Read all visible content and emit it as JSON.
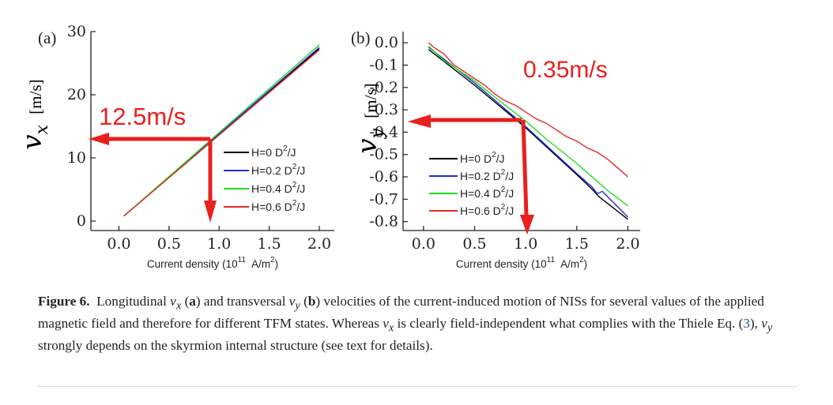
{
  "chart_data": [
    {
      "type": "line",
      "panel_label": "(a)",
      "xlabel": "Current density (10",
      "xlabel_exp": "11",
      "xlabel_unit": "A/m",
      "xlabel_unit_exp": "2",
      "xlabel_close": ")",
      "ylabel_symbol": "v",
      "ylabel_sub": "x",
      "ylabel_unit": "[m/s]",
      "xlim": [
        -0.28,
        2.15
      ],
      "ylim": [
        -1.5,
        30
      ],
      "xticks": [
        0.0,
        0.5,
        1.0,
        1.5,
        2.0
      ],
      "xtick_labels": [
        "0.0",
        "0.5",
        "1.0",
        "1.5",
        "2.0"
      ],
      "yticks": [
        0,
        10,
        20,
        30
      ],
      "ytick_labels": [
        "0",
        "10",
        "20",
        "30"
      ],
      "legend_position": "lower-right",
      "series": [
        {
          "name": "H=0 D",
          "name_exp": "2",
          "name_tail": "/J",
          "color": "#000000",
          "x": [
            0.05,
            2.0
          ],
          "y": [
            0.8,
            27.3
          ]
        },
        {
          "name": "H=0.2 D",
          "name_exp": "2",
          "name_tail": "/J",
          "color": "#1f2dd6",
          "x": [
            0.05,
            2.0
          ],
          "y": [
            0.8,
            27.5
          ]
        },
        {
          "name": "H=0.4 D",
          "name_exp": "2",
          "name_tail": "/J",
          "color": "#22dd22",
          "x": [
            0.05,
            2.0
          ],
          "y": [
            0.8,
            27.9
          ]
        },
        {
          "name": "H=0.6 D",
          "name_exp": "2",
          "name_tail": "/J",
          "color": "#e32a22",
          "x": [
            0.05,
            2.0
          ],
          "y": [
            0.8,
            27.1
          ]
        }
      ],
      "annotation": {
        "text": "12.5m/s",
        "color": "#e8201e",
        "point": [
          0.95,
          12.5
        ]
      }
    },
    {
      "type": "line",
      "panel_label": "(b)",
      "xlabel": "Current density (10",
      "xlabel_exp": "11",
      "xlabel_unit": "A/m",
      "xlabel_unit_exp": "2",
      "xlabel_close": ")",
      "ylabel_symbol": "v",
      "ylabel_sub": "y",
      "ylabel_unit": "[m/s]",
      "xlim": [
        -0.2,
        2.12
      ],
      "ylim": [
        -0.84,
        0.05
      ],
      "xticks": [
        0.0,
        0.5,
        1.0,
        1.5,
        2.0
      ],
      "xtick_labels": [
        "0.0",
        "0.5",
        "1.0",
        "1.5",
        "2.0"
      ],
      "yticks": [
        0.0,
        -0.1,
        -0.2,
        -0.3,
        -0.4,
        -0.5,
        -0.6,
        -0.7,
        -0.8
      ],
      "ytick_labels": [
        "0.0",
        "-0.1",
        "-0.2",
        "-0.3",
        "-0.4",
        "-0.5",
        "-0.6",
        "-0.7",
        "-0.8"
      ],
      "legend_position": "lower-left",
      "series": [
        {
          "name": "H=0 D",
          "name_exp": "2",
          "name_tail": "/J",
          "color": "#000000",
          "x": [
            0.05,
            0.5,
            1.0,
            1.5,
            1.65,
            1.72,
            2.0
          ],
          "y": [
            -0.03,
            -0.19,
            -0.38,
            -0.59,
            -0.655,
            -0.69,
            -0.79
          ]
        },
        {
          "name": "H=0.2 D",
          "name_exp": "2",
          "name_tail": "/J",
          "color": "#1f2dd6",
          "x": [
            0.05,
            0.5,
            1.0,
            1.5,
            1.65,
            1.7,
            1.75,
            2.0
          ],
          "y": [
            -0.02,
            -0.18,
            -0.375,
            -0.585,
            -0.645,
            -0.675,
            -0.665,
            -0.78
          ]
        },
        {
          "name": "H=0.4 D",
          "name_exp": "2",
          "name_tail": "/J",
          "color": "#22dd22",
          "x": [
            0.05,
            0.2,
            0.5,
            0.8,
            1.0,
            1.2,
            1.5,
            1.8,
            2.0
          ],
          "y": [
            -0.015,
            -0.08,
            -0.17,
            -0.28,
            -0.35,
            -0.43,
            -0.54,
            -0.66,
            -0.73
          ]
        },
        {
          "name": "H=0.6 D",
          "name_exp": "2",
          "name_tail": "/J",
          "color": "#e32a22",
          "x": [
            0.05,
            0.1,
            0.2,
            0.3,
            0.4,
            0.5,
            0.6,
            0.7,
            0.8,
            0.9,
            1.0,
            1.1,
            1.2,
            1.3,
            1.4,
            1.5,
            1.6,
            1.7,
            1.8,
            1.9,
            2.0
          ],
          "y": [
            0.0,
            -0.02,
            -0.05,
            -0.1,
            -0.13,
            -0.16,
            -0.19,
            -0.23,
            -0.26,
            -0.28,
            -0.31,
            -0.34,
            -0.36,
            -0.39,
            -0.42,
            -0.44,
            -0.47,
            -0.49,
            -0.52,
            -0.56,
            -0.6
          ]
        }
      ],
      "annotation": {
        "text": "0.35m/s",
        "color": "#e8201e",
        "point": [
          0.93,
          -0.36
        ]
      }
    }
  ],
  "caption": {
    "figure_label": "Figure 6.",
    "text_1": "Longitudinal ",
    "vx_symbol": "v",
    "vx_sub": "x",
    "panel_a_open": " (",
    "panel_a": "a",
    "text_2": ") and transversal ",
    "vy_symbol": "v",
    "vy_sub": "y",
    "panel_b_open": " (",
    "panel_b": "b",
    "text_3": ") velocities of the current-induced motion of NISs for several values of the applied magnetic field and therefore for different TFM states. Whereas ",
    "vx2_symbol": "v",
    "vx2_sub": "x",
    "text_4": " is clearly field-independent what complies with the Thiele Eq. (",
    "eq_ref": "3",
    "text_5": "), ",
    "vy2_symbol": "v",
    "vy2_sub": "y",
    "text_6": " strongly depends on the skyrmion internal structure (see text for details)."
  }
}
